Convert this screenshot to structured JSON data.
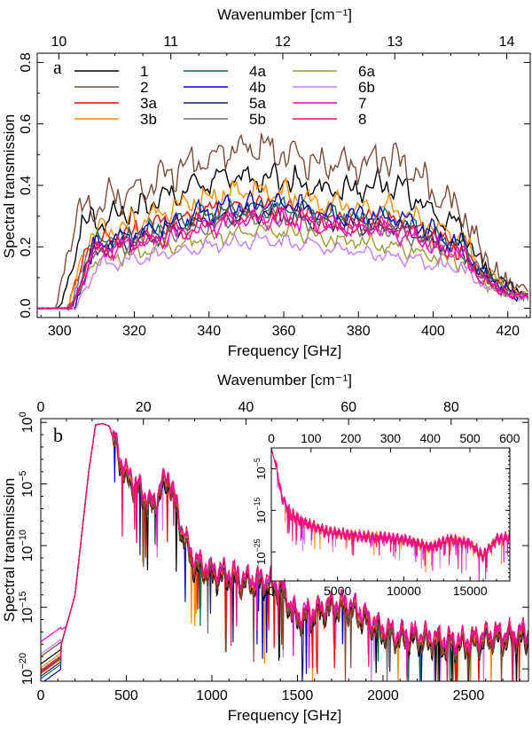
{
  "chart_data": [
    {
      "type": "line",
      "panel_label": "a",
      "xlabel": "Frequency [GHz]",
      "ylabel": "Spectral transmission",
      "top_axis_label": "Wavenumber [cm⁻¹]",
      "xlim": [
        294,
        426
      ],
      "ylim": [
        -0.03,
        0.83
      ],
      "xticks": [
        300,
        320,
        340,
        360,
        380,
        400,
        420
      ],
      "xtick_labels": [
        "300",
        "320",
        "340",
        "360",
        "380",
        "400",
        "420"
      ],
      "yticks": [
        0.0,
        0.2,
        0.4,
        0.6,
        0.8
      ],
      "ytick_labels": [
        "0.0",
        "0.2",
        "0.4",
        "0.6",
        "0.8"
      ],
      "top_ticks": [
        10,
        11,
        12,
        13,
        14
      ],
      "top_tick_labels": [
        "10",
        "11",
        "12",
        "13",
        "14"
      ],
      "series": [
        {
          "name": "1",
          "color": "#000000",
          "peak": 0.43,
          "peak_center": 352,
          "peak_width": 27,
          "high_bump": 0.1,
          "onset": 300,
          "noise_seed": 1
        },
        {
          "name": "2",
          "color": "#7a4b3a",
          "peak": 0.52,
          "peak_center": 352,
          "peak_width": 27,
          "high_bump": 0.12,
          "onset": 299,
          "noise_seed": 2
        },
        {
          "name": "3a",
          "color": "#ff0000",
          "peak": 0.33,
          "peak_center": 352,
          "peak_width": 27,
          "high_bump": 0.05,
          "onset": 302,
          "noise_seed": 3
        },
        {
          "name": "3b",
          "color": "#ff8c00",
          "peak": 0.38,
          "peak_center": 352,
          "peak_width": 27,
          "high_bump": 0.06,
          "onset": 302,
          "noise_seed": 4
        },
        {
          "name": "4a",
          "color": "#006e50",
          "peak": 0.33,
          "peak_center": 355,
          "peak_width": 27,
          "high_bump": 0.04,
          "onset": 303,
          "noise_seed": 5
        },
        {
          "name": "4b",
          "color": "#0000cc",
          "peak": 0.34,
          "peak_center": 355,
          "peak_width": 27,
          "high_bump": 0.05,
          "onset": 304,
          "noise_seed": 6
        },
        {
          "name": "5a",
          "color": "#1c1c6e",
          "peak": 0.31,
          "peak_center": 355,
          "peak_width": 27,
          "high_bump": 0.04,
          "onset": 303,
          "noise_seed": 7
        },
        {
          "name": "5b",
          "color": "#707070",
          "peak": 0.3,
          "peak_center": 355,
          "peak_width": 27,
          "high_bump": 0.04,
          "onset": 302,
          "noise_seed": 8
        },
        {
          "name": "6a",
          "color": "#9c9a2e",
          "peak": 0.25,
          "peak_center": 355,
          "peak_width": 27,
          "high_bump": 0.02,
          "onset": 303,
          "noise_seed": 9
        },
        {
          "name": "6b",
          "color": "#c87af0",
          "peak": 0.22,
          "peak_center": 355,
          "peak_width": 27,
          "high_bump": 0.01,
          "onset": 304,
          "noise_seed": 10
        },
        {
          "name": "7",
          "color": "#ff00cc",
          "peak": 0.29,
          "peak_center": 355,
          "peak_width": 27,
          "high_bump": 0.04,
          "onset": 303,
          "noise_seed": 11
        },
        {
          "name": "8",
          "color": "#f0106e",
          "peak": 0.3,
          "peak_center": 355,
          "peak_width": 27,
          "high_bump": 0.05,
          "onset": 303,
          "noise_seed": 12
        }
      ]
    },
    {
      "type": "line",
      "y_scale": "log",
      "panel_label": "b",
      "xlabel": "Frequency [GHz]",
      "ylabel": "Spectral transmission",
      "top_axis_label": "Wavenumber [cm⁻¹]",
      "xlim": [
        0,
        2850
      ],
      "ylim_exponent": [
        -21,
        0.3
      ],
      "xticks": [
        0,
        500,
        1000,
        1500,
        2000,
        2500
      ],
      "xtick_labels": [
        "0",
        "500",
        "1000",
        "1500",
        "2000",
        "2500"
      ],
      "ytick_exponents": [
        0,
        -5,
        -10,
        -15,
        -20
      ],
      "ytick_labels": [
        {
          "base": "10",
          "exp": "0"
        },
        {
          "base": "10",
          "exp": "−5"
        },
        {
          "base": "10",
          "exp": "−10"
        },
        {
          "base": "10",
          "exp": "−15"
        },
        {
          "base": "10",
          "exp": "−20"
        }
      ],
      "top_ticks": [
        0,
        20,
        40,
        60,
        80
      ],
      "top_tick_labels": [
        "0",
        "20",
        "40",
        "60",
        "80"
      ],
      "envelope_log10": [
        [
          0,
          -19.5
        ],
        [
          100,
          -19.0
        ],
        [
          200,
          -14.0
        ],
        [
          280,
          -4.0
        ],
        [
          320,
          -0.2
        ],
        [
          360,
          -0.1
        ],
        [
          400,
          -0.3
        ],
        [
          450,
          -2.5
        ],
        [
          500,
          -4.5
        ],
        [
          550,
          -5.0
        ],
        [
          600,
          -6.0
        ],
        [
          650,
          -7.0
        ],
        [
          700,
          -5.5
        ],
        [
          750,
          -4.5
        ],
        [
          800,
          -7.5
        ],
        [
          850,
          -10.0
        ],
        [
          900,
          -11.5
        ],
        [
          1000,
          -12.3
        ],
        [
          1100,
          -12.5
        ],
        [
          1200,
          -13.0
        ],
        [
          1300,
          -13.0
        ],
        [
          1400,
          -13.5
        ],
        [
          1500,
          -16.0
        ],
        [
          1600,
          -15.5
        ],
        [
          1700,
          -15.0
        ],
        [
          1800,
          -15.0
        ],
        [
          1900,
          -16.0
        ],
        [
          2000,
          -17.0
        ],
        [
          2100,
          -17.5
        ],
        [
          2200,
          -17.5
        ],
        [
          2300,
          -17.8
        ],
        [
          2400,
          -18.0
        ],
        [
          2500,
          -18.0
        ],
        [
          2600,
          -17.5
        ],
        [
          2700,
          -17.5
        ],
        [
          2850,
          -17.3
        ]
      ],
      "low_freq_log10_at_0": [
        -19.6,
        -19.0,
        -20.3,
        -19.9,
        -20.8,
        -21.2,
        -20.6,
        -20.1,
        -20.4,
        -18.8,
        -17.8,
        -20.2
      ],
      "inset": {
        "type": "line",
        "y_scale": "log",
        "xlim": [
          0,
          18000
        ],
        "xticks": [
          0,
          5000,
          10000,
          15000
        ],
        "xtick_labels": [
          "0",
          "5000",
          "10000",
          "15000"
        ],
        "top_ticks": [
          0,
          100,
          200,
          300,
          400,
          500,
          600
        ],
        "top_tick_labels": [
          "0",
          "100",
          "200",
          "300",
          "400",
          "500",
          "600"
        ],
        "ylim_exponent": [
          -32,
          0
        ],
        "ytick_exponents": [
          -5,
          -15,
          -25
        ],
        "ytick_labels": [
          {
            "base": "10",
            "exp": "−5"
          },
          {
            "base": "10",
            "exp": "−15"
          },
          {
            "base": "10",
            "exp": "−25"
          }
        ],
        "envelope_log10": [
          [
            0,
            0
          ],
          [
            400,
            -5
          ],
          [
            800,
            -12
          ],
          [
            1500,
            -16
          ],
          [
            2500,
            -18
          ],
          [
            4000,
            -20
          ],
          [
            6000,
            -21
          ],
          [
            8000,
            -21.5
          ],
          [
            10000,
            -22
          ],
          [
            12000,
            -24
          ],
          [
            13500,
            -22
          ],
          [
            15000,
            -23
          ],
          [
            16000,
            -26
          ],
          [
            17000,
            -22
          ],
          [
            18000,
            -21.5
          ]
        ]
      }
    }
  ]
}
